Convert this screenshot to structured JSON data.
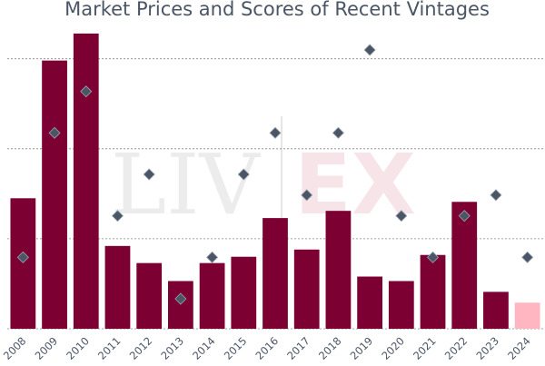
{
  "chart_data": {
    "type": "bar",
    "title": "Market Prices and Scores of Recent Vintages",
    "xlabel": "",
    "ylabel": "",
    "categories": [
      "2008",
      "2009",
      "2010",
      "2011",
      "2012",
      "2013",
      "2014",
      "2015",
      "2016",
      "2017",
      "2018",
      "2019",
      "2020",
      "2021",
      "2022",
      "2023",
      "2024"
    ],
    "series": [
      {
        "type": "bar",
        "values": [
          145,
          298,
          328,
          92,
          73,
          53,
          73,
          80,
          123,
          88,
          131,
          58,
          53,
          82,
          141,
          41,
          29
        ],
        "colors": [
          "#7d0033",
          "#7d0033",
          "#7d0033",
          "#7d0033",
          "#7d0033",
          "#7d0033",
          "#7d0033",
          "#7d0033",
          "#7d0033",
          "#7d0033",
          "#7d0033",
          "#7d0033",
          "#7d0033",
          "#7d0033",
          "#7d0033",
          "#7d0033",
          "#ffb6c1"
        ]
      },
      {
        "type": "scatter",
        "marker": "diamond",
        "values": [
          94,
          97,
          98,
          95,
          96,
          93,
          94,
          96,
          97,
          95.5,
          97,
          99,
          95,
          94,
          95,
          95.5,
          94
        ]
      }
    ],
    "bar_ylim": [
      0,
      335
    ],
    "score_ylim": [
      92,
      100.5
    ],
    "grid": "horizontal-dashed",
    "watermark": [
      "LIV",
      "EX"
    ]
  }
}
